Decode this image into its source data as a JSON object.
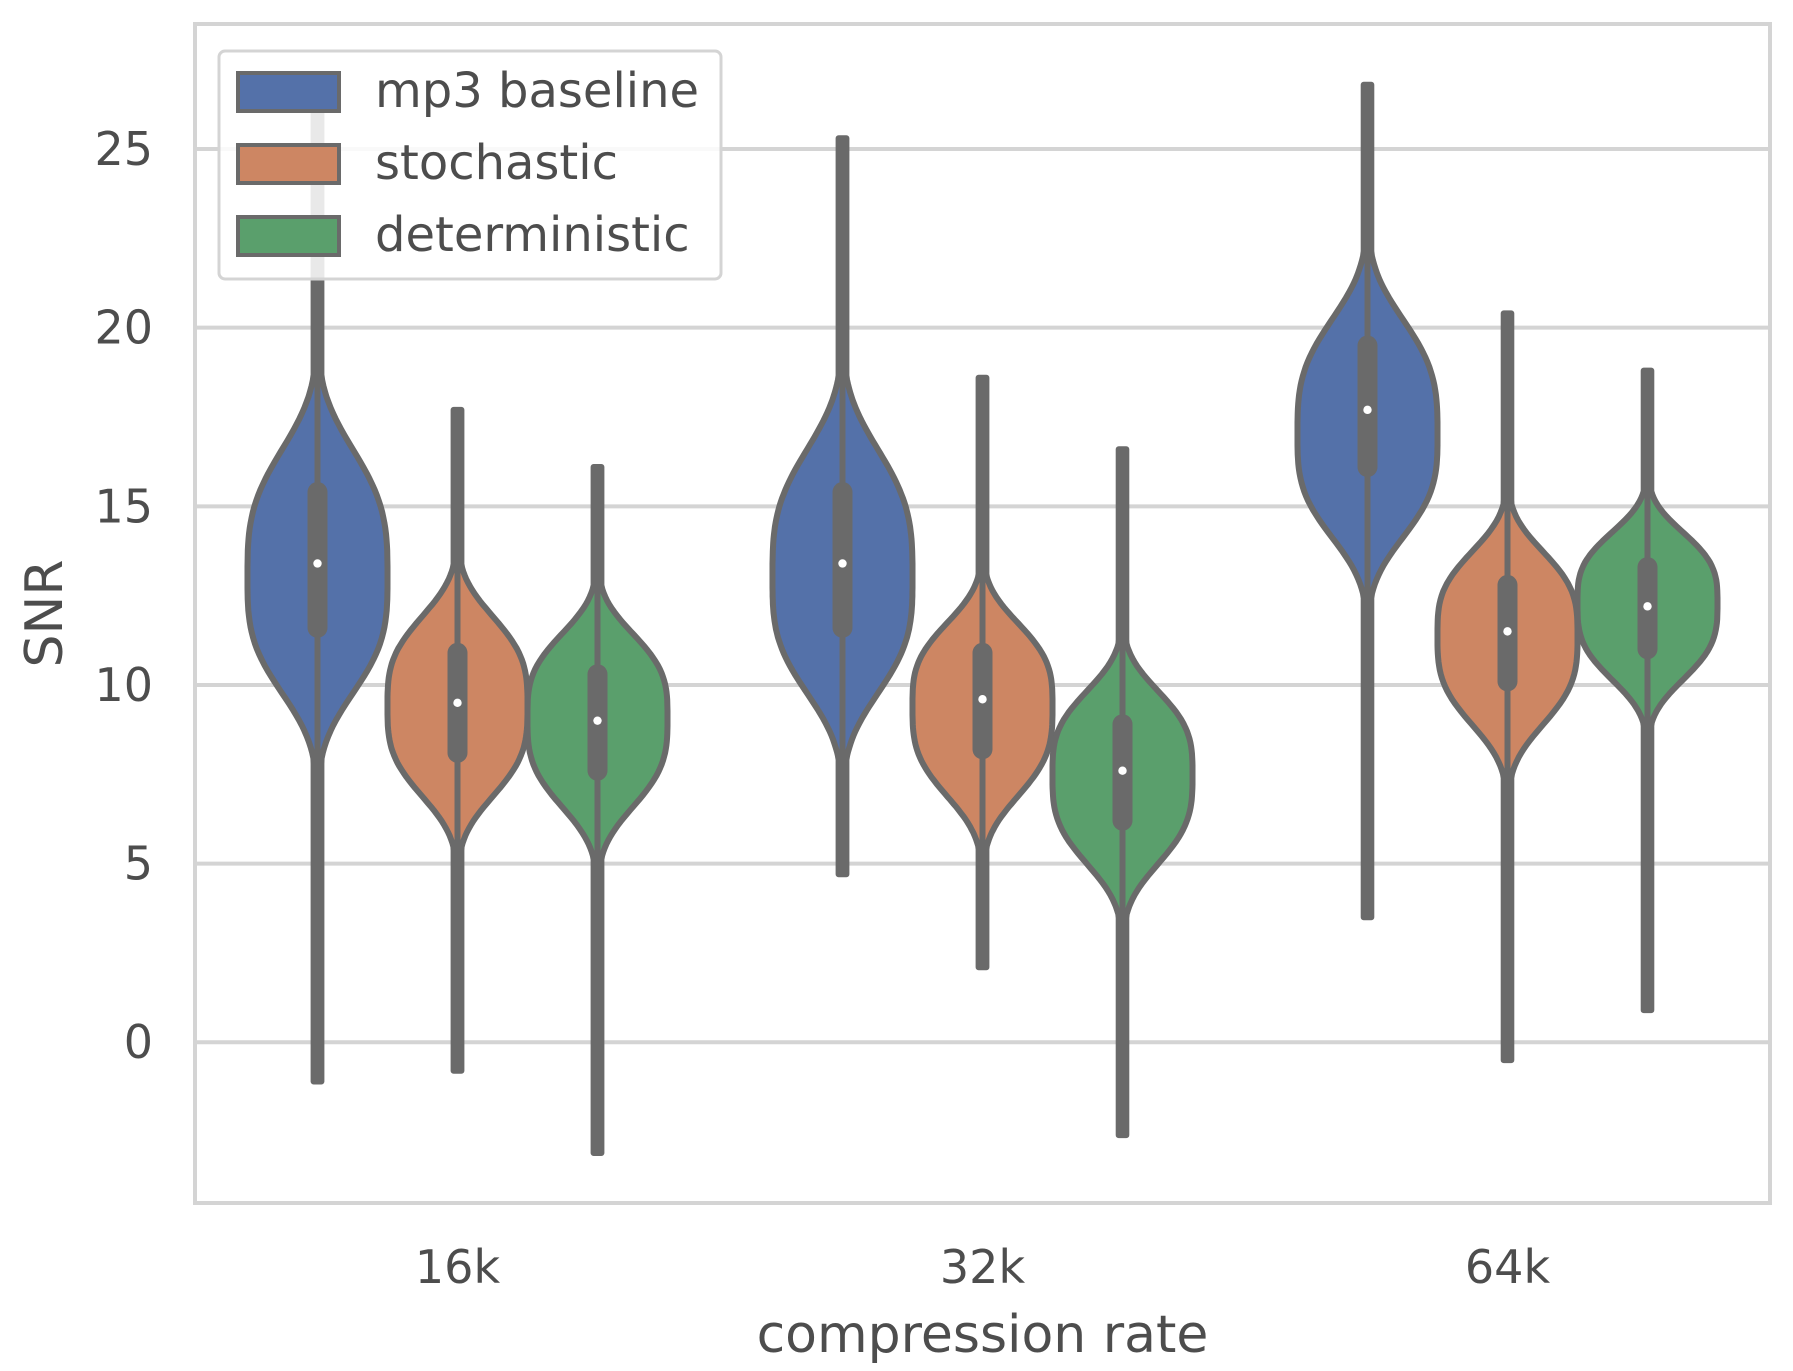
{
  "chart_data": {
    "type": "violin",
    "title": "",
    "xlabel": "compression rate",
    "ylabel": "SNR",
    "categories": [
      "16k",
      "32k",
      "64k"
    ],
    "ylim": [
      -4.5,
      28.5
    ],
    "yticks": [
      0,
      5,
      10,
      15,
      20,
      25
    ],
    "grid": true,
    "legend_position": "top-left",
    "series": [
      {
        "name": "mp3 baseline",
        "color": "#5471a9",
        "stats": [
          {
            "min": -1.1,
            "q1": 11.6,
            "median": 13.4,
            "q3": 15.4,
            "max": 26.5,
            "mode": 13.0
          },
          {
            "min": 4.7,
            "q1": 11.6,
            "median": 13.4,
            "q3": 15.4,
            "max": 25.3,
            "mode": 13.0
          },
          {
            "min": 3.5,
            "q1": 16.1,
            "median": 17.7,
            "q3": 19.5,
            "max": 26.8,
            "mode": 17.0
          }
        ]
      },
      {
        "name": "stochastic",
        "color": "#cd8663",
        "stats": [
          {
            "min": -0.8,
            "q1": 8.1,
            "median": 9.5,
            "q3": 10.9,
            "max": 17.7,
            "mode": 9.4
          },
          {
            "min": 2.1,
            "q1": 8.2,
            "median": 9.6,
            "q3": 10.9,
            "max": 18.6,
            "mode": 9.4
          },
          {
            "min": -0.5,
            "q1": 10.1,
            "median": 11.5,
            "q3": 12.8,
            "max": 20.4,
            "mode": 11.4
          }
        ]
      },
      {
        "name": "deterministic",
        "color": "#5a9f6c",
        "stats": [
          {
            "min": -3.1,
            "q1": 7.6,
            "median": 9.0,
            "q3": 10.3,
            "max": 16.1,
            "mode": 9.1
          },
          {
            "min": -2.6,
            "q1": 6.2,
            "median": 7.6,
            "q3": 8.9,
            "max": 16.6,
            "mode": 7.5
          },
          {
            "min": 0.9,
            "q1": 11.0,
            "median": 12.2,
            "q3": 13.3,
            "max": 18.8,
            "mode": 12.3
          }
        ]
      }
    ]
  }
}
